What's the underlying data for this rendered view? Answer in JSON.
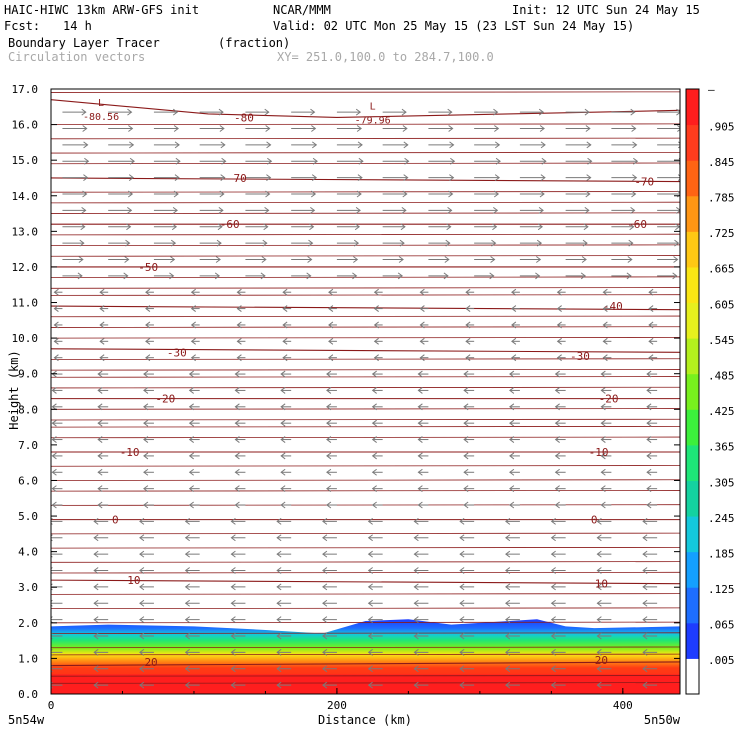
{
  "header": {
    "model_line": "HAIC-HIWC 13km ARW-GFS init",
    "org": "NCAR/MMM",
    "init": "Init: 12 UTC Sun 24 May 15",
    "fcst_label": "Fcst:",
    "fcst_value": "14 h",
    "valid": "Valid: 02 UTC Mon 25 May 15 (23 LST Sun 24 May 15)",
    "field": "Boundary Layer Tracer",
    "units": "(fraction)",
    "vectors": "Circulation vectors",
    "xy": "XY= 251.0,100.0 to 284.7,100.0"
  },
  "colors": {
    "contour": "#8b1a1a",
    "vector": "#7a7a7a"
  },
  "chart_data": {
    "type": "heatmap",
    "xlabel": "Distance (km)",
    "ylabel": "Height (km)",
    "xlim": [
      0,
      440
    ],
    "ylim": [
      0,
      17
    ],
    "x_ticks": [
      0,
      200,
      400
    ],
    "y_ticks": [
      "0.0",
      "1.0",
      "2.0",
      "3.0",
      "4.0",
      "5.0",
      "6.0",
      "7.0",
      "8.0",
      "9.0",
      "10.0",
      "11.0",
      "12.0",
      "13.0",
      "14.0",
      "15.0",
      "16.0",
      "17.0"
    ],
    "x_endpoints": {
      "left": "5n54w",
      "right": "5n50w"
    },
    "colorbar": {
      "labels": [
        ".005",
        ".065",
        ".125",
        ".185",
        ".245",
        ".305",
        ".365",
        ".425",
        ".485",
        ".545",
        ".605",
        ".665",
        ".725",
        ".785",
        ".845",
        ".905"
      ],
      "top_label": "–",
      "colors": [
        "#ffffff",
        "#1e3cff",
        "#1e6eff",
        "#14a0ff",
        "#14c8dc",
        "#14d2a0",
        "#1ee678",
        "#3cf03c",
        "#78f01e",
        "#b4f01e",
        "#e6f01e",
        "#fae614",
        "#ffc814",
        "#ff9614",
        "#ff6414",
        "#ff3c1e",
        "#ff1e1e"
      ]
    },
    "contours": [
      {
        "label": "-80",
        "levels": [
          [
            0,
            16.7
          ],
          [
            110,
            16.3
          ],
          [
            200,
            16.2
          ],
          [
            320,
            16.3
          ],
          [
            440,
            16.4
          ]
        ]
      },
      {
        "label": "-70",
        "levels": [
          [
            0,
            14.5
          ],
          [
            440,
            14.4
          ]
        ]
      },
      {
        "label": "-60",
        "levels": [
          [
            0,
            13.2
          ],
          [
            440,
            13.2
          ]
        ]
      },
      {
        "label": "-50",
        "levels": [
          [
            0,
            12.0
          ],
          [
            440,
            12.0
          ]
        ]
      },
      {
        "label": "-40",
        "levels": [
          [
            0,
            10.9
          ],
          [
            440,
            10.8
          ]
        ]
      },
      {
        "label": "-30",
        "levels": [
          [
            0,
            9.7
          ],
          [
            440,
            9.6
          ]
        ]
      },
      {
        "label": "-20",
        "levels": [
          [
            0,
            8.3
          ],
          [
            440,
            8.3
          ]
        ]
      },
      {
        "label": "-10",
        "levels": [
          [
            0,
            6.8
          ],
          [
            440,
            6.8
          ]
        ]
      },
      {
        "label": "0",
        "levels": [
          [
            0,
            4.9
          ],
          [
            440,
            4.9
          ]
        ]
      },
      {
        "label": "10",
        "levels": [
          [
            0,
            3.2
          ],
          [
            440,
            3.1
          ]
        ]
      },
      {
        "label": "20",
        "levels": [
          [
            0,
            0.8
          ],
          [
            440,
            0.9
          ]
        ]
      }
    ],
    "contour_labels": [
      {
        "text": "-80",
        "x": 135,
        "y": 16.2
      },
      {
        "text": "-70",
        "x": 130,
        "y": 14.5
      },
      {
        "text": "-70",
        "x": 415,
        "y": 14.4
      },
      {
        "text": "-60",
        "x": 125,
        "y": 13.2
      },
      {
        "text": "-60",
        "x": 410,
        "y": 13.2
      },
      {
        "text": "-50",
        "x": 68,
        "y": 12.0
      },
      {
        "text": "-40",
        "x": 393,
        "y": 10.9
      },
      {
        "text": "-30",
        "x": 88,
        "y": 9.6
      },
      {
        "text": "-30",
        "x": 370,
        "y": 9.5
      },
      {
        "text": "-20",
        "x": 80,
        "y": 8.3
      },
      {
        "text": "-20",
        "x": 390,
        "y": 8.3
      },
      {
        "text": "-10",
        "x": 55,
        "y": 6.8
      },
      {
        "text": "-10",
        "x": 383,
        "y": 6.8
      },
      {
        "text": "0",
        "x": 45,
        "y": 4.9
      },
      {
        "text": "0",
        "x": 380,
        "y": 4.9
      },
      {
        "text": "10",
        "x": 58,
        "y": 3.2
      },
      {
        "text": "10",
        "x": 385,
        "y": 3.1
      },
      {
        "text": "20",
        "x": 70,
        "y": 0.9
      },
      {
        "text": "20",
        "x": 385,
        "y": 0.95
      }
    ],
    "extrema": [
      {
        "mark": "L",
        "value": "-80.56",
        "x": 35,
        "y": 16.3
      },
      {
        "mark": "L",
        "value": "-79.96",
        "x": 225,
        "y": 16.2
      }
    ],
    "tracer_top_km": [
      [
        0,
        1.9
      ],
      [
        40,
        1.95
      ],
      [
        100,
        1.9
      ],
      [
        150,
        1.8
      ],
      [
        190,
        1.7
      ],
      [
        220,
        2.05
      ],
      [
        250,
        2.1
      ],
      [
        280,
        1.95
      ],
      [
        300,
        2.0
      ],
      [
        340,
        2.1
      ],
      [
        360,
        1.9
      ],
      [
        380,
        1.85
      ],
      [
        440,
        1.9
      ]
    ]
  }
}
